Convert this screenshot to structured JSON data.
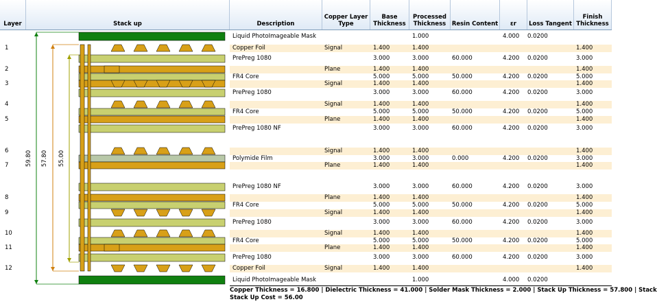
{
  "headers": {
    "layer": "Layer",
    "stackup": "Stack up",
    "description": "Description",
    "copper_type": "Copper Layer\nType",
    "base": "Base\nThickness",
    "processed": "Processed\nThickness",
    "resin": "Resin Content",
    "er": "εr",
    "loss": "Loss Tangent",
    "finish": "Finish\nThickness"
  },
  "layer_labels": [
    "1",
    "2",
    "3",
    "4",
    "5",
    "6",
    "7",
    "8",
    "9",
    "10",
    "11",
    "12"
  ],
  "dimensions": {
    "outer": "59.80",
    "middle": "57.80",
    "inner": "55.00"
  },
  "rows": [
    {
      "desc": "Liquid PhotoImageable Mask",
      "type": "",
      "base": "",
      "proc": "1.000",
      "resin": "",
      "er": "4.000",
      "loss": "0.0200",
      "fin": ""
    },
    {
      "desc": "Copper Foil",
      "type": "Signal",
      "base": "1.400",
      "proc": "1.400",
      "resin": "",
      "er": "",
      "loss": "",
      "fin": "1.400"
    },
    {
      "desc": "PrePreg 1080",
      "type": "",
      "base": "3.000",
      "proc": "3.000",
      "resin": "60.000",
      "er": "4.200",
      "loss": "0.0200",
      "fin": "3.000"
    },
    {
      "desc": "",
      "type": "Plane",
      "base": "1.400",
      "proc": "1.400",
      "resin": "",
      "er": "",
      "loss": "",
      "fin": "1.400"
    },
    {
      "desc": "FR4 Core",
      "type": "",
      "base": "5.000",
      "proc": "5.000",
      "resin": "50.000",
      "er": "4.200",
      "loss": "0.0200",
      "fin": "5.000"
    },
    {
      "desc": "",
      "type": "Signal",
      "base": "1.400",
      "proc": "1.400",
      "resin": "",
      "er": "",
      "loss": "",
      "fin": "1.400"
    },
    {
      "desc": "PrePreg 1080",
      "type": "",
      "base": "3.000",
      "proc": "3.000",
      "resin": "60.000",
      "er": "4.200",
      "loss": "0.0200",
      "fin": "3.000"
    },
    {
      "desc": "",
      "type": "Signal",
      "base": "1.400",
      "proc": "1.400",
      "resin": "",
      "er": "",
      "loss": "",
      "fin": "1.400"
    },
    {
      "desc": "FR4 Core",
      "type": "",
      "base": "5.000",
      "proc": "5.000",
      "resin": "50.000",
      "er": "4.200",
      "loss": "0.0200",
      "fin": "5.000"
    },
    {
      "desc": "",
      "type": "Plane",
      "base": "1.400",
      "proc": "1.400",
      "resin": "",
      "er": "",
      "loss": "",
      "fin": "1.400"
    },
    {
      "desc": "PrePreg 1080 NF",
      "type": "",
      "base": "3.000",
      "proc": "3.000",
      "resin": "60.000",
      "er": "4.200",
      "loss": "0.0200",
      "fin": "3.000"
    },
    {
      "desc": "",
      "type": "Signal",
      "base": "1.400",
      "proc": "1.400",
      "resin": "",
      "er": "",
      "loss": "",
      "fin": "1.400"
    },
    {
      "desc": "Polymide Film",
      "type": "",
      "base": "3.000",
      "proc": "3.000",
      "resin": "0.000",
      "er": "4.200",
      "loss": "0.0200",
      "fin": "3.000"
    },
    {
      "desc": "",
      "type": "Plane",
      "base": "1.400",
      "proc": "1.400",
      "resin": "",
      "er": "",
      "loss": "",
      "fin": "1.400"
    },
    {
      "desc": "PrePreg 1080 NF",
      "type": "",
      "base": "3.000",
      "proc": "3.000",
      "resin": "60.000",
      "er": "4.200",
      "loss": "0.0200",
      "fin": "3.000"
    },
    {
      "desc": "",
      "type": "Plane",
      "base": "1.400",
      "proc": "1.400",
      "resin": "",
      "er": "",
      "loss": "",
      "fin": "1.400"
    },
    {
      "desc": "FR4 Core",
      "type": "",
      "base": "5.000",
      "proc": "5.000",
      "resin": "50.000",
      "er": "4.200",
      "loss": "0.0200",
      "fin": "5.000"
    },
    {
      "desc": "",
      "type": "Signal",
      "base": "1.400",
      "proc": "1.400",
      "resin": "",
      "er": "",
      "loss": "",
      "fin": "1.400"
    },
    {
      "desc": "PrePreg 1080",
      "type": "",
      "base": "3.000",
      "proc": "3.000",
      "resin": "60.000",
      "er": "4.200",
      "loss": "0.0200",
      "fin": "3.000"
    },
    {
      "desc": "",
      "type": "Signal",
      "base": "1.400",
      "proc": "1.400",
      "resin": "",
      "er": "",
      "loss": "",
      "fin": "1.400"
    },
    {
      "desc": "FR4 Core",
      "type": "",
      "base": "5.000",
      "proc": "5.000",
      "resin": "50.000",
      "er": "4.200",
      "loss": "0.0200",
      "fin": "5.000"
    },
    {
      "desc": "",
      "type": "Plane",
      "base": "1.400",
      "proc": "1.400",
      "resin": "",
      "er": "",
      "loss": "",
      "fin": "1.400"
    },
    {
      "desc": "PrePreg 1080",
      "type": "",
      "base": "3.000",
      "proc": "3.000",
      "resin": "60.000",
      "er": "4.200",
      "loss": "0.0200",
      "fin": "3.000"
    },
    {
      "desc": "Copper Foil",
      "type": "Signal",
      "base": "1.400",
      "proc": "1.400",
      "resin": "",
      "er": "",
      "loss": "",
      "fin": "1.400"
    },
    {
      "desc": "Liquid PhotoImageable Mask",
      "type": "",
      "base": "",
      "proc": "1.000",
      "resin": "",
      "er": "4.000",
      "loss": "0.0200",
      "fin": ""
    }
  ],
  "totals": {
    "line1": "Copper Thickness = 16.800  | Dielectric Thickness = 41.000  | Solder Mask Thickness = 2.000  | Stack Up Thickness = 57.800  | Stack",
    "line2": "Stack Up Cost = 56.00"
  },
  "colors": {
    "mask": "#108010",
    "copper": "#d8a018",
    "prepreg": "#c8d070",
    "film": "#b8c8a8",
    "band": "#fdefd3"
  }
}
